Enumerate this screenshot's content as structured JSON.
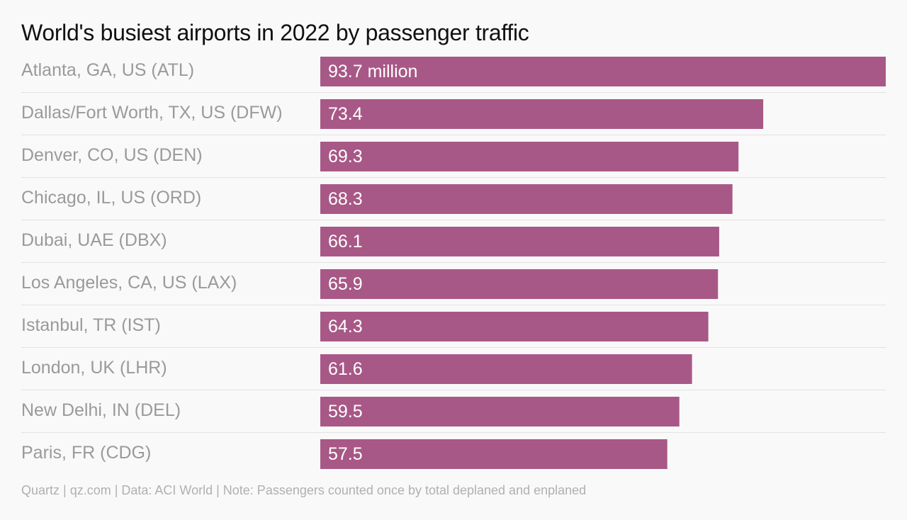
{
  "chart_data": {
    "type": "bar",
    "orientation": "horizontal",
    "title": "World's busiest airports in 2022 by passenger traffic",
    "categories": [
      "Atlanta, GA, US (ATL)",
      "Dallas/Fort Worth, TX, US (DFW)",
      "Denver, CO, US (DEN)",
      "Chicago, IL, US (ORD)",
      "Dubai, UAE (DBX)",
      "Los Angeles, CA, US (LAX)",
      "Istanbul, TR (IST)",
      "London, UK (LHR)",
      "New Delhi, IN (DEL)",
      "Paris, FR (CDG)"
    ],
    "values": [
      93.7,
      73.4,
      69.3,
      68.3,
      66.1,
      65.9,
      64.3,
      61.6,
      59.5,
      57.5
    ],
    "data_labels": [
      "93.7 million",
      "73.4",
      "69.3",
      "68.3",
      "66.1",
      "65.9",
      "64.3",
      "61.6",
      "59.5",
      "57.5"
    ],
    "xlim": [
      0,
      93.7
    ],
    "grid": false,
    "colors": {
      "bar": "#a85886",
      "separator": "#e2e2e2",
      "category_text": "#9a9a9a",
      "value_text": "#ffffff",
      "background": "#f9f9f9"
    }
  },
  "footer": "Quartz | qz.com | Data: ACI World | Note: Passengers counted once by total deplaned and enplaned"
}
